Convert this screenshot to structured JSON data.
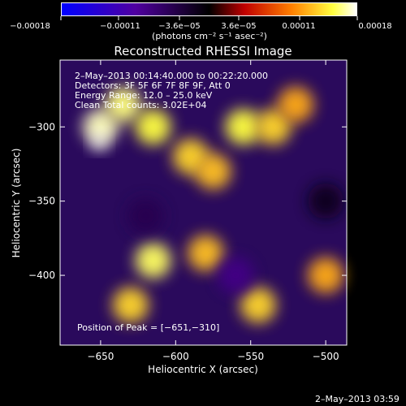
{
  "chart_data": {
    "type": "heatmap",
    "title": "Reconstructed RHESSI Image",
    "xlabel": "Heliocentric X (arcsec)",
    "ylabel": "Heliocentric Y (arcsec)",
    "xlim": [
      -677,
      -486
    ],
    "ylim": [
      -447,
      -255
    ],
    "x_ticks": [
      -650,
      -600,
      -550,
      -500
    ],
    "y_ticks": [
      -300,
      -350,
      -400
    ],
    "x_tick_labels": [
      "−650",
      "−600",
      "−550",
      "−500"
    ],
    "y_tick_labels": [
      "−300",
      "−350",
      "−400"
    ],
    "colorbar": {
      "min": -0.00018,
      "max": 0.00018,
      "tick_values": [
        -0.00018,
        -0.00011,
        -3.6e-05,
        3.6e-05,
        0.00011,
        0.00018
      ],
      "tick_labels": [
        "−0.00018",
        "−0.00011",
        "−3.6e−05",
        "3.6e−05",
        "0.00011",
        "0.00018"
      ],
      "units": "(photons cm⁻² s⁻¹ asec⁻²)",
      "colors": [
        "#0000ff",
        "#5000a0",
        "#000000",
        "#c00000",
        "#ff8000",
        "#ffff40",
        "#ffffff"
      ]
    },
    "grid": false,
    "peak": {
      "x": -651,
      "y": -310
    },
    "bright_regions": [
      {
        "x": -650,
        "y": -300,
        "value": 0.00016
      },
      {
        "x": -635,
        "y": -285,
        "value": 0.00014
      },
      {
        "x": -615,
        "y": -300,
        "value": 0.00012
      },
      {
        "x": -590,
        "y": -320,
        "value": 0.0001
      },
      {
        "x": -575,
        "y": -330,
        "value": 9e-05
      },
      {
        "x": -555,
        "y": -300,
        "value": 0.00012
      },
      {
        "x": -535,
        "y": -300,
        "value": 0.0001
      },
      {
        "x": -520,
        "y": -285,
        "value": 8e-05
      },
      {
        "x": -615,
        "y": -390,
        "value": 0.00013
      },
      {
        "x": -630,
        "y": -420,
        "value": 0.0001
      },
      {
        "x": -580,
        "y": -385,
        "value": 9e-05
      },
      {
        "x": -545,
        "y": -420,
        "value": 0.0001
      },
      {
        "x": -500,
        "y": -400,
        "value": 8e-05
      }
    ],
    "negative_regions": [
      {
        "x": -620,
        "y": -360,
        "value": -9e-05
      },
      {
        "x": -560,
        "y": -400,
        "value": -0.00011
      },
      {
        "x": -500,
        "y": -350,
        "value": -7e-05
      }
    ]
  },
  "annotations": {
    "time_range": "2–May–2013 00:14:40.000 to 00:22:20.000",
    "detectors": "Detectors: 3F 5F 6F 7F 8F 9F, Att 0",
    "energy_range": "Energy Range: 12.0 – 25.0 keV",
    "clean": "Clean     Total counts: 3.02E+04",
    "peak_label": "Position of Peak = [−651,−310]"
  },
  "footer_date": "2–May–2013 03:59"
}
